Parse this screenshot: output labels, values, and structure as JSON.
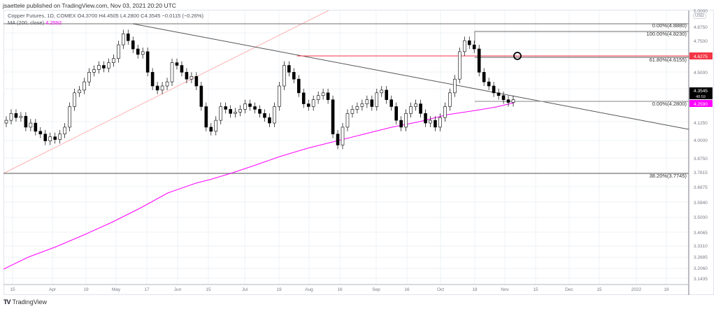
{
  "header": {
    "published": "jsaettele published on TradingView.com, Nov 03, 2021 20:20 UTC"
  },
  "legend": {
    "symbol_line": "Copper Futures, 1D, COMEX  O4.3700  H4.4505  L4.2800  C4.3545  −0.0115 (−0.26%)",
    "ma_label": "MA (200, close)",
    "ma_value": "4.2592"
  },
  "price_axis": {
    "currency": "USD",
    "ticks": [
      "5.0000",
      "4.8750",
      "4.7500",
      "4.5000",
      "4.3750",
      "4.1250",
      "4.0000",
      "3.8750",
      "3.7815",
      "3.6875",
      "3.5940",
      "3.5000",
      "3.4065",
      "3.3310",
      "3.2685",
      "3.2060",
      "3.1435"
    ],
    "badges": {
      "red_level": "4.6275",
      "last_price": "4.3545",
      "countdown": "48:59",
      "ma_price": "4.2590"
    }
  },
  "time_axis": {
    "ticks": [
      "15",
      "Apr",
      "19",
      "May",
      "17",
      "Jun",
      "15",
      "Jul",
      "19",
      "Aug",
      "16",
      "Sep",
      "16",
      "Oct",
      "18",
      "Nov",
      "15",
      "Dec",
      "15",
      "2022",
      "18"
    ]
  },
  "fib_labels": {
    "f0_top": "0.00%(4.8880)",
    "f100": "100.00%(4.8230)",
    "f618": "61.80%(4.6155)",
    "f0_bottom": "0.00%(4.2800)",
    "f382": "38.20%(3.7745)"
  },
  "footer": {
    "logo_glyph": "TV",
    "brand": "TradingView"
  },
  "colors": {
    "ma_line": "#ff00ff",
    "red_level": "#f23645",
    "trendline": "#555555",
    "fib_line": "#9e9e9e",
    "candle_up": "#ffffff",
    "candle_down": "#000000"
  },
  "chart_data": {
    "type": "candlestick",
    "title": "Copper Futures, 1D, COMEX",
    "ohlc_last": {
      "open": 4.37,
      "high": 4.4505,
      "low": 4.28,
      "close": 4.3545,
      "change": -0.0115,
      "change_pct": -0.26
    },
    "indicator": {
      "name": "MA (200, close)",
      "value": 4.2592,
      "color": "#ff00ff"
    },
    "ylim": [
      3.1435,
      5.0
    ],
    "ylabel": "USD",
    "x_ticks": [
      "15",
      "Apr",
      "19",
      "May",
      "17",
      "Jun",
      "15",
      "Jul",
      "19",
      "Aug",
      "16",
      "Sep",
      "16",
      "Oct",
      "18",
      "Nov",
      "15",
      "Dec",
      "15",
      "2022",
      "18"
    ],
    "horizontal_levels": [
      {
        "label": "0.00%",
        "value": 4.888
      },
      {
        "label": "100.00%",
        "value": 4.823
      },
      {
        "label": "red level",
        "value": 4.6275
      },
      {
        "label": "61.80%",
        "value": 4.6155
      },
      {
        "label": "0.00%",
        "value": 4.28
      },
      {
        "label": "38.20%",
        "value": 3.7745
      }
    ],
    "approx_closes": [
      4.2,
      4.25,
      4.22,
      4.23,
      4.15,
      4.18,
      4.12,
      4.1,
      4.05,
      4.08,
      4.06,
      4.1,
      4.15,
      4.3,
      4.4,
      4.42,
      4.48,
      4.55,
      4.57,
      4.6,
      4.58,
      4.62,
      4.65,
      4.75,
      4.83,
      4.78,
      4.72,
      4.68,
      4.7,
      4.55,
      4.45,
      4.42,
      4.45,
      4.48,
      4.62,
      4.6,
      4.55,
      4.5,
      4.52,
      4.45,
      4.3,
      4.15,
      4.12,
      4.2,
      4.3,
      4.28,
      4.25,
      4.26,
      4.28,
      4.32,
      4.3,
      4.28,
      4.25,
      4.22,
      4.18,
      4.3,
      4.45,
      4.6,
      4.55,
      4.5,
      4.4,
      4.32,
      4.3,
      4.35,
      4.38,
      4.4,
      4.35,
      4.1,
      4.02,
      4.15,
      4.25,
      4.28,
      4.3,
      4.32,
      4.35,
      4.3,
      4.4,
      4.42,
      4.35,
      4.3,
      4.2,
      4.15,
      4.25,
      4.3,
      4.32,
      4.25,
      4.18,
      4.2,
      4.15,
      4.22,
      4.3,
      4.4,
      4.5,
      4.7,
      4.78,
      4.75,
      4.72,
      4.55,
      4.48,
      4.45,
      4.4,
      4.38,
      4.35,
      4.33,
      4.35
    ]
  }
}
